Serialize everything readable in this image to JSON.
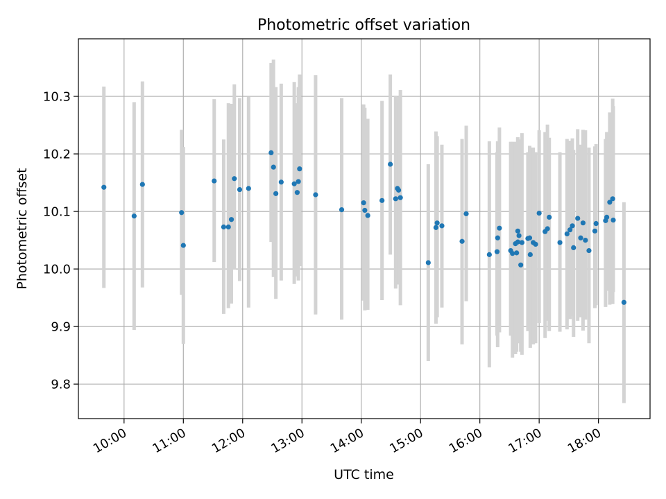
{
  "chart_data": {
    "type": "scatter",
    "title": "Photometric offset variation",
    "xlabel": "UTC time",
    "ylabel": "Photometric offset",
    "xlim": [
      9.23,
      18.87
    ],
    "ylim": [
      9.74,
      10.4
    ],
    "xticks": [
      10,
      11,
      12,
      13,
      14,
      15,
      16,
      17,
      18
    ],
    "xtick_labels": [
      "10:00",
      "11:00",
      "12:00",
      "13:00",
      "14:00",
      "15:00",
      "16:00",
      "17:00",
      "18:00"
    ],
    "yticks": [
      9.8,
      9.9,
      10.0,
      10.1,
      10.2,
      10.3
    ],
    "ytick_labels": [
      "9.8",
      "9.9",
      "10.0",
      "10.1",
      "10.2",
      "10.3"
    ],
    "grid": true,
    "colors": {
      "points": "#1f77b4",
      "errorbars": "#d3d3d3",
      "grid": "#b0b0b0"
    },
    "series": [
      {
        "x": [
          9.66,
          10.17,
          10.31,
          10.97,
          11.0,
          11.52,
          11.68,
          11.76,
          11.81,
          11.86,
          11.95,
          12.1,
          12.48,
          12.52,
          12.56,
          12.65,
          12.87,
          12.92,
          12.94,
          12.96,
          13.23,
          13.67,
          14.04,
          14.06,
          14.11,
          14.35,
          14.49,
          14.58,
          14.61,
          14.63,
          14.66,
          15.13,
          15.26,
          15.28,
          15.36,
          15.7,
          15.77,
          16.16,
          16.29,
          16.3,
          16.33,
          16.52,
          16.55,
          16.6,
          16.62,
          16.64,
          16.64,
          16.66,
          16.69,
          16.71,
          16.81,
          16.84,
          16.85,
          16.9,
          16.94,
          17.0,
          17.1,
          17.14,
          17.17,
          17.35,
          17.47,
          17.52,
          17.56,
          17.58,
          17.65,
          17.7,
          17.74,
          17.78,
          17.84,
          17.94,
          17.96,
          18.12,
          18.14,
          18.19,
          18.24,
          18.25,
          18.43
        ],
        "y": [
          10.142,
          10.092,
          10.147,
          10.098,
          10.041,
          10.153,
          10.073,
          10.073,
          10.086,
          10.157,
          10.138,
          10.14,
          10.202,
          10.177,
          10.131,
          10.151,
          10.148,
          10.133,
          10.152,
          10.174,
          10.129,
          10.103,
          10.115,
          10.102,
          10.093,
          10.119,
          10.182,
          10.122,
          10.14,
          10.137,
          10.124,
          10.011,
          10.072,
          10.08,
          10.075,
          10.048,
          10.096,
          10.025,
          10.03,
          10.054,
          10.071,
          10.032,
          10.027,
          10.044,
          10.028,
          10.047,
          10.066,
          10.058,
          10.007,
          10.046,
          10.053,
          10.054,
          10.025,
          10.046,
          10.043,
          10.097,
          10.065,
          10.07,
          10.09,
          10.046,
          10.061,
          10.068,
          10.075,
          10.037,
          10.088,
          10.054,
          10.08,
          10.05,
          10.032,
          10.066,
          10.079,
          10.084,
          10.09,
          10.116,
          10.122,
          10.085,
          9.942
        ],
        "err_low": [
          9.967,
          9.894,
          9.968,
          9.955,
          9.87,
          10.012,
          9.922,
          9.932,
          9.94,
          9.999,
          9.979,
          9.933,
          10.047,
          9.986,
          9.948,
          9.98,
          9.974,
          9.987,
          9.98,
          10.005,
          9.921,
          9.912,
          9.945,
          9.928,
          9.929,
          9.946,
          10.025,
          9.966,
          9.984,
          9.973,
          9.937,
          9.84,
          9.905,
          9.916,
          9.933,
          9.869,
          9.944,
          9.829,
          9.884,
          9.864,
          9.89,
          9.884,
          9.846,
          9.852,
          9.856,
          9.889,
          9.871,
          9.872,
          9.856,
          9.851,
          9.892,
          9.896,
          9.863,
          9.869,
          9.871,
          9.906,
          9.88,
          9.91,
          9.892,
          9.891,
          9.895,
          9.913,
          9.918,
          9.882,
          9.91,
          9.916,
          9.893,
          9.912,
          9.871,
          9.932,
          9.937,
          9.934,
          9.962,
          9.938,
          9.939,
          9.96,
          9.767
        ],
        "err_high": [
          10.317,
          10.29,
          10.326,
          10.242,
          10.212,
          10.295,
          10.225,
          10.288,
          10.287,
          10.321,
          10.297,
          10.299,
          10.358,
          10.364,
          10.316,
          10.322,
          10.325,
          10.288,
          10.316,
          10.338,
          10.337,
          10.297,
          10.286,
          10.28,
          10.261,
          10.292,
          10.338,
          10.3,
          10.299,
          10.288,
          10.311,
          10.182,
          10.239,
          10.231,
          10.216,
          10.226,
          10.249,
          10.222,
          10.203,
          10.222,
          10.246,
          10.221,
          10.221,
          10.221,
          10.217,
          10.229,
          10.229,
          10.225,
          10.198,
          10.236,
          10.203,
          10.214,
          10.211,
          10.211,
          10.203,
          10.241,
          10.238,
          10.251,
          10.228,
          10.203,
          10.226,
          10.223,
          10.227,
          10.207,
          10.243,
          10.216,
          10.242,
          10.241,
          10.211,
          10.213,
          10.217,
          10.226,
          10.238,
          10.272,
          10.296,
          10.283,
          10.116
        ]
      }
    ]
  }
}
